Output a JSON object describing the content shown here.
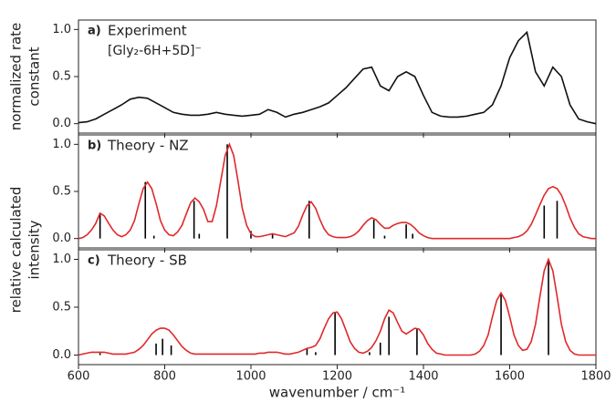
{
  "chart_data": [
    {
      "type": "line",
      "panel": "a)",
      "title": "Experiment",
      "subtitle": "[Gly₂-6H+5D]⁻",
      "ylabel": [
        "normalized rate",
        "constant"
      ],
      "color": "#111111",
      "x": [
        600,
        620,
        640,
        660,
        680,
        700,
        720,
        740,
        760,
        780,
        800,
        820,
        840,
        860,
        880,
        900,
        920,
        940,
        960,
        980,
        1000,
        1020,
        1040,
        1060,
        1080,
        1100,
        1120,
        1140,
        1160,
        1180,
        1200,
        1220,
        1240,
        1260,
        1280,
        1300,
        1320,
        1340,
        1360,
        1380,
        1400,
        1420,
        1440,
        1460,
        1480,
        1500,
        1520,
        1540,
        1560,
        1580,
        1600,
        1620,
        1640,
        1660,
        1680,
        1700,
        1720,
        1740,
        1760,
        1780,
        1800
      ],
      "values": [
        0.01,
        0.02,
        0.05,
        0.1,
        0.15,
        0.2,
        0.26,
        0.28,
        0.27,
        0.22,
        0.17,
        0.12,
        0.1,
        0.09,
        0.09,
        0.1,
        0.12,
        0.1,
        0.09,
        0.08,
        0.09,
        0.1,
        0.15,
        0.12,
        0.07,
        0.1,
        0.12,
        0.15,
        0.18,
        0.22,
        0.3,
        0.38,
        0.48,
        0.58,
        0.6,
        0.4,
        0.35,
        0.5,
        0.55,
        0.5,
        0.3,
        0.12,
        0.08,
        0.07,
        0.07,
        0.08,
        0.1,
        0.12,
        0.2,
        0.4,
        0.7,
        0.88,
        0.97,
        0.55,
        0.4,
        0.6,
        0.5,
        0.2,
        0.05,
        0.02,
        0.0
      ],
      "xlim": [
        600,
        1800
      ],
      "xticks": [
        600,
        800,
        1000,
        1200,
        1400,
        1600,
        1800
      ],
      "xtick_labels": false,
      "ylim": [
        -0.1,
        1.1
      ],
      "yticks": [
        {
          "value": 0,
          "label": "0.0"
        },
        {
          "value": 0.5,
          "label": "0.5"
        },
        {
          "value": 1,
          "label": "1.0"
        }
      ]
    },
    {
      "type": "line",
      "panel": "b)",
      "title": "Theory - NZ",
      "ylabel": [
        "relative calculated",
        "intensity"
      ],
      "color": "#e0282a",
      "x": [
        600,
        610,
        620,
        630,
        640,
        650,
        660,
        670,
        680,
        690,
        700,
        710,
        720,
        730,
        740,
        750,
        760,
        770,
        780,
        790,
        800,
        810,
        820,
        830,
        840,
        850,
        860,
        870,
        880,
        890,
        900,
        910,
        920,
        930,
        940,
        950,
        960,
        970,
        980,
        990,
        1000,
        1010,
        1020,
        1030,
        1040,
        1050,
        1060,
        1070,
        1080,
        1090,
        1100,
        1110,
        1120,
        1130,
        1140,
        1150,
        1160,
        1170,
        1180,
        1190,
        1200,
        1210,
        1220,
        1230,
        1240,
        1250,
        1260,
        1270,
        1280,
        1290,
        1300,
        1310,
        1320,
        1330,
        1340,
        1350,
        1360,
        1370,
        1380,
        1390,
        1400,
        1410,
        1420,
        1430,
        1440,
        1450,
        1460,
        1470,
        1480,
        1490,
        1500,
        1510,
        1520,
        1530,
        1540,
        1550,
        1560,
        1570,
        1580,
        1590,
        1600,
        1610,
        1620,
        1630,
        1640,
        1650,
        1660,
        1670,
        1680,
        1690,
        1700,
        1710,
        1720,
        1730,
        1740,
        1750,
        1760,
        1770,
        1780,
        1790,
        1800
      ],
      "values": [
        0,
        0.01,
        0.04,
        0.09,
        0.16,
        0.27,
        0.24,
        0.16,
        0.09,
        0.04,
        0.02,
        0.04,
        0.09,
        0.19,
        0.37,
        0.53,
        0.6,
        0.53,
        0.37,
        0.19,
        0.09,
        0.04,
        0.03,
        0.07,
        0.14,
        0.26,
        0.38,
        0.43,
        0.39,
        0.31,
        0.18,
        0.18,
        0.35,
        0.61,
        0.88,
        1.0,
        0.88,
        0.61,
        0.32,
        0.14,
        0.05,
        0.02,
        0.02,
        0.03,
        0.04,
        0.05,
        0.04,
        0.03,
        0.02,
        0.04,
        0.06,
        0.13,
        0.25,
        0.35,
        0.39,
        0.32,
        0.2,
        0.1,
        0.04,
        0.02,
        0.01,
        0.01,
        0.01,
        0.02,
        0.04,
        0.08,
        0.14,
        0.19,
        0.22,
        0.2,
        0.15,
        0.11,
        0.11,
        0.14,
        0.16,
        0.17,
        0.17,
        0.15,
        0.11,
        0.06,
        0.03,
        0.01,
        0,
        0,
        0,
        0,
        0,
        0,
        0,
        0,
        0,
        0,
        0,
        0,
        0,
        0,
        0,
        0,
        0,
        0,
        0,
        0.01,
        0.02,
        0.04,
        0.08,
        0.15,
        0.25,
        0.36,
        0.46,
        0.53,
        0.55,
        0.53,
        0.46,
        0.35,
        0.22,
        0.12,
        0.05,
        0.02,
        0.01,
        0,
        0
      ],
      "sticks": {
        "color": "#000000",
        "x": [
          650,
          755,
          775,
          868,
          880,
          945,
          1000,
          1050,
          1135,
          1285,
          1310,
          1360,
          1375,
          1680,
          1710
        ],
        "values": [
          0.27,
          0.6,
          0.03,
          0.4,
          0.05,
          1.0,
          0.08,
          0.05,
          0.4,
          0.2,
          0.03,
          0.15,
          0.05,
          0.35,
          0.4
        ]
      },
      "xlim": [
        600,
        1800
      ],
      "xticks": [
        600,
        800,
        1000,
        1200,
        1400,
        1600,
        1800
      ],
      "xtick_labels": false,
      "ylim": [
        -0.1,
        1.1
      ],
      "yticks": [
        {
          "value": 0,
          "label": "0.0"
        },
        {
          "value": 0.5,
          "label": "0.5"
        },
        {
          "value": 1,
          "label": "1.0"
        }
      ]
    },
    {
      "type": "line",
      "panel": "c)",
      "title": "Theory - SB",
      "xlabel": "wavenumber / cm⁻¹",
      "color": "#e0282a",
      "x": [
        600,
        610,
        620,
        630,
        640,
        650,
        660,
        670,
        680,
        690,
        700,
        710,
        720,
        730,
        740,
        750,
        760,
        770,
        780,
        790,
        800,
        810,
        820,
        830,
        840,
        850,
        860,
        870,
        880,
        890,
        900,
        910,
        920,
        930,
        940,
        950,
        960,
        970,
        980,
        990,
        1000,
        1010,
        1020,
        1030,
        1040,
        1050,
        1060,
        1070,
        1080,
        1090,
        1100,
        1110,
        1120,
        1130,
        1140,
        1150,
        1160,
        1170,
        1180,
        1190,
        1200,
        1210,
        1220,
        1230,
        1240,
        1250,
        1260,
        1270,
        1280,
        1290,
        1300,
        1310,
        1320,
        1330,
        1340,
        1350,
        1360,
        1370,
        1380,
        1390,
        1400,
        1410,
        1420,
        1430,
        1440,
        1450,
        1460,
        1470,
        1480,
        1490,
        1500,
        1510,
        1520,
        1530,
        1540,
        1550,
        1560,
        1570,
        1580,
        1590,
        1600,
        1610,
        1620,
        1630,
        1640,
        1650,
        1660,
        1670,
        1680,
        1690,
        1700,
        1710,
        1720,
        1730,
        1740,
        1750,
        1760,
        1770,
        1780,
        1790,
        1800
      ],
      "values": [
        0,
        0.01,
        0.02,
        0.03,
        0.03,
        0.03,
        0.03,
        0.02,
        0.01,
        0.01,
        0.01,
        0.01,
        0.02,
        0.03,
        0.06,
        0.1,
        0.16,
        0.22,
        0.26,
        0.28,
        0.28,
        0.26,
        0.21,
        0.15,
        0.09,
        0.05,
        0.02,
        0.01,
        0.01,
        0.01,
        0.01,
        0.01,
        0.01,
        0.01,
        0.01,
        0.01,
        0.01,
        0.01,
        0.01,
        0.01,
        0.01,
        0.01,
        0.02,
        0.02,
        0.03,
        0.03,
        0.03,
        0.02,
        0.01,
        0.01,
        0.02,
        0.03,
        0.05,
        0.07,
        0.08,
        0.1,
        0.17,
        0.28,
        0.38,
        0.44,
        0.45,
        0.38,
        0.26,
        0.14,
        0.07,
        0.03,
        0.02,
        0.04,
        0.08,
        0.15,
        0.25,
        0.38,
        0.47,
        0.44,
        0.34,
        0.25,
        0.22,
        0.25,
        0.28,
        0.27,
        0.21,
        0.12,
        0.06,
        0.02,
        0.01,
        0,
        0,
        0,
        0,
        0,
        0,
        0,
        0.01,
        0.04,
        0.1,
        0.21,
        0.4,
        0.57,
        0.65,
        0.57,
        0.4,
        0.21,
        0.1,
        0.05,
        0.06,
        0.14,
        0.32,
        0.61,
        0.88,
        1.0,
        0.88,
        0.61,
        0.32,
        0.14,
        0.05,
        0.01,
        0,
        0,
        0,
        0,
        0
      ],
      "sticks": {
        "color": "#000000",
        "x": [
          650,
          780,
          795,
          815,
          1130,
          1150,
          1195,
          1275,
          1300,
          1320,
          1385,
          1580,
          1690
        ],
        "values": [
          0.02,
          0.12,
          0.17,
          0.1,
          0.07,
          0.03,
          0.45,
          0.03,
          0.13,
          0.4,
          0.28,
          0.65,
          1.0
        ]
      },
      "xlim": [
        600,
        1800
      ],
      "xticks": [
        600,
        800,
        1000,
        1200,
        1400,
        1600,
        1800
      ],
      "xtick_labels": true,
      "ylim": [
        -0.1,
        1.1
      ],
      "yticks": [
        {
          "value": 0,
          "label": "0.0"
        },
        {
          "value": 0.5,
          "label": "0.5"
        },
        {
          "value": 1,
          "label": "1.0"
        }
      ]
    }
  ]
}
